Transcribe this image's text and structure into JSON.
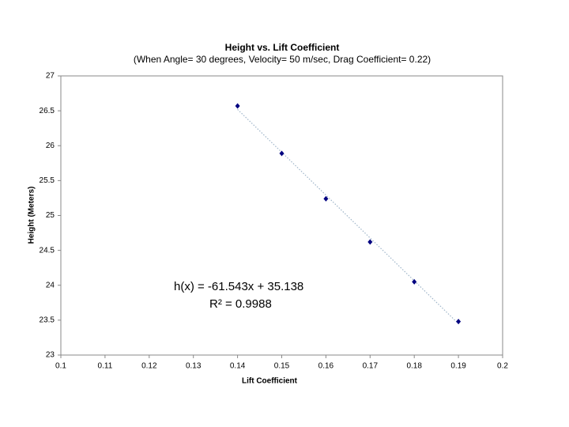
{
  "chart_data": {
    "type": "scatter",
    "title": "Height vs. Lift Coefficient",
    "subtitle": "(When Angle= 30 degrees, Velocity= 50 m/sec, Drag Coefficient= 0.22)",
    "x_label": "Lift Coefficient",
    "y_label": "Height (Meters)",
    "x": [
      0.14,
      0.15,
      0.16,
      0.17,
      0.18,
      0.19
    ],
    "values": [
      26.57,
      25.89,
      25.24,
      24.62,
      24.05,
      23.48
    ],
    "color": "#000080",
    "trendline": {
      "x": [
        0.14,
        0.19
      ],
      "values": [
        26.52,
        23.45
      ],
      "color": "#9fb5c9"
    },
    "annotations": [
      "h(x) = -61.543x + 35.138",
      "R² = 0.9988"
    ],
    "xlim": [
      0.1,
      0.2
    ],
    "xticks": [
      0.1,
      0.11,
      0.12,
      0.13,
      0.14,
      0.15,
      0.16,
      0.17,
      0.18,
      0.19,
      0.2
    ],
    "ylim": [
      23,
      27
    ],
    "yticks": [
      23,
      23.5,
      24,
      24.5,
      25,
      25.5,
      26,
      26.5,
      27
    ],
    "grid": false
  }
}
